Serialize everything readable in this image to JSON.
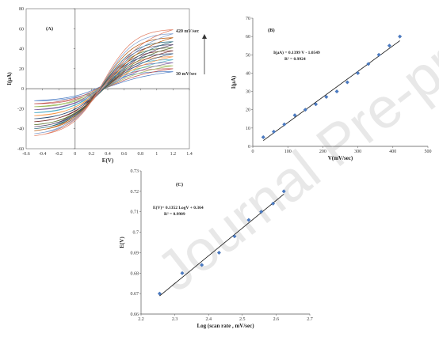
{
  "watermark": "Journal Pre-proofs",
  "chart_data": [
    {
      "panel": "(A)",
      "type": "line",
      "xlabel": "E(V)",
      "ylabel": "I(µA)",
      "xlim": [
        -0.6,
        1.4
      ],
      "ylim": [
        -60,
        80
      ],
      "xticks": [
        -0.6,
        -0.4,
        -0.2,
        0,
        0.2,
        0.4,
        0.6,
        0.8,
        1,
        1.2,
        1.4
      ],
      "yticks": [
        -60,
        -40,
        -20,
        0,
        20,
        40,
        60,
        80
      ],
      "annotations": [
        "420 mV/sec",
        "30 mV/sec"
      ],
      "series_count": 14,
      "x_range": [
        -0.5,
        1.2
      ],
      "anodic_end_currents": [
        17,
        20,
        23,
        26,
        29,
        32,
        35,
        38,
        41,
        44,
        47,
        51,
        55,
        59
      ],
      "cathodic_start_currents": [
        -12,
        -15,
        -18,
        -21,
        -24,
        -27,
        -30,
        -33,
        -36,
        -38,
        -40,
        -42,
        -45,
        -47
      ],
      "colors": [
        "#4a7bc4",
        "#c0504d",
        "#9bbb59",
        "#8064a2",
        "#4bacc6",
        "#f79646",
        "#2c4d75",
        "#772c2a",
        "#5f7530",
        "#4d3b62",
        "#276a7c",
        "#b65708",
        "#7d9ecf",
        "#e07a5f"
      ]
    },
    {
      "panel": "(B)",
      "type": "scatter",
      "xlabel": "V(mV/sec)",
      "ylabel": "I(µA)",
      "xlim": [
        0,
        500
      ],
      "ylim": [
        0,
        70
      ],
      "xticks": [
        0,
        100,
        200,
        300,
        400,
        500
      ],
      "yticks": [
        0,
        10,
        20,
        30,
        40,
        50,
        60,
        70
      ],
      "equation": "I(µA) = 0.1399 V - 1.0549",
      "r2": "R² = 0.9924",
      "x": [
        30,
        60,
        90,
        120,
        150,
        180,
        210,
        240,
        270,
        300,
        330,
        360,
        390,
        420
      ],
      "y": [
        5,
        8,
        12,
        17,
        20,
        23,
        27,
        30,
        35,
        40,
        45,
        50,
        55,
        60
      ],
      "fit": {
        "slope": 0.1399,
        "intercept": -1.0549
      }
    },
    {
      "panel": "(C)",
      "type": "scatter",
      "xlabel": "Log (scan rate , mV/sec)",
      "ylabel": "E(V)",
      "xlim": [
        2.2,
        2.7
      ],
      "ylim": [
        0.66,
        0.73
      ],
      "xticks": [
        2.2,
        2.3,
        2.4,
        2.5,
        2.6,
        2.7
      ],
      "yticks": [
        0.66,
        0.67,
        0.68,
        0.69,
        0.7,
        0.71,
        0.72,
        0.73
      ],
      "equation": "E(V)= 0.1352 LogV + 0.364",
      "r2": "R² = 0.9909",
      "x": [
        2.255,
        2.322,
        2.38,
        2.431,
        2.477,
        2.519,
        2.556,
        2.591,
        2.623
      ],
      "y": [
        0.67,
        0.68,
        0.684,
        0.69,
        0.698,
        0.706,
        0.71,
        0.714,
        0.72
      ],
      "fit": {
        "slope": 0.1352,
        "intercept": 0.364
      }
    }
  ]
}
